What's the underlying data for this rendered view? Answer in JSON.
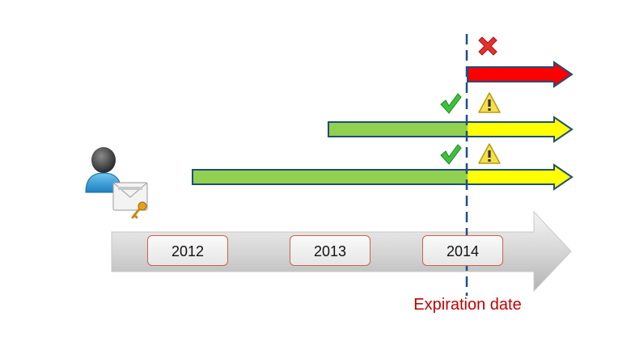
{
  "timeline": {
    "years": [
      "2012",
      "2013",
      "2014"
    ]
  },
  "expiration_label": "Expiration date",
  "status_icons": {
    "top": [
      "cross-icon"
    ],
    "middle": [
      "check-icon",
      "warning-icon"
    ],
    "bottom": [
      "check-icon",
      "warning-icon"
    ]
  },
  "colors": {
    "valid": "#92d050",
    "warning": "#ffff00",
    "expired": "#ff0000",
    "outline": "#1f4e79",
    "expiration_line": "#1f4e8c",
    "expiration_text": "#c00000"
  },
  "user_icon": "user-with-certificate-icon"
}
